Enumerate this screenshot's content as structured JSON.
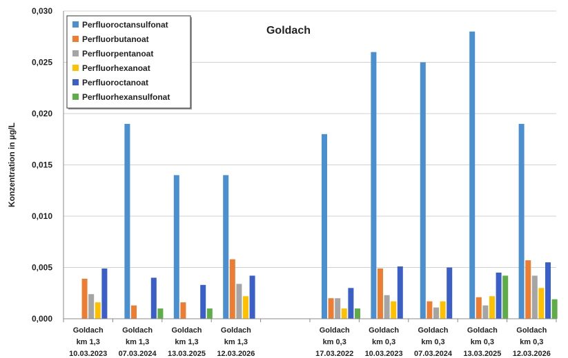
{
  "chart_data": {
    "type": "bar",
    "title": "Goldach",
    "ylabel": "Konzentration in µg/L",
    "xlabel": "",
    "ylim": [
      0,
      0.03
    ],
    "yticks": [
      "0,000",
      "0,005",
      "0,010",
      "0,015",
      "0,020",
      "0,025",
      "0,030"
    ],
    "grid": true,
    "legend_position": "top-left",
    "categories": [
      [
        "Goldach",
        "km 1,3",
        "10.03.2023"
      ],
      [
        "Goldach",
        "km 1,3",
        "07.03.2024"
      ],
      [
        "Goldach",
        "km 1,3",
        "13.03.2025"
      ],
      [
        "Goldach",
        "km 1,3",
        "12.03.2026"
      ],
      [
        "",
        "",
        ""
      ],
      [
        "Goldach",
        "km 0,3",
        "17.03.2022"
      ],
      [
        "Goldach",
        "km 0,3",
        "10.03.2023"
      ],
      [
        "Goldach",
        "km 0,3",
        "07.03.2024"
      ],
      [
        "Goldach",
        "km 0,3",
        "13.03.2025"
      ],
      [
        "Goldach",
        "km 0,3",
        "12.03.2026"
      ]
    ],
    "series": [
      {
        "name": "Perfluoroctansulfonat",
        "color": "#4a90d0",
        "values": [
          null,
          0.019,
          0.014,
          0.014,
          null,
          0.018,
          0.026,
          0.025,
          0.028,
          0.019
        ]
      },
      {
        "name": "Perfluorbutanoat",
        "color": "#ed7d31",
        "values": [
          0.0039,
          0.0013,
          0.0016,
          0.0058,
          null,
          0.002,
          0.0049,
          0.0017,
          0.0021,
          0.0057
        ]
      },
      {
        "name": "Perfluorpentanoat",
        "color": "#a5a5a5",
        "values": [
          0.0024,
          null,
          null,
          0.0034,
          null,
          0.002,
          0.0023,
          0.0011,
          0.0013,
          0.0042
        ]
      },
      {
        "name": "Perfluorhexanoat",
        "color": "#ffc000",
        "values": [
          0.0016,
          null,
          null,
          0.0022,
          null,
          0.001,
          0.0017,
          0.0017,
          0.0022,
          0.003
        ]
      },
      {
        "name": "Perfluoroctanoat",
        "color": "#3a5fc8",
        "values": [
          0.0049,
          0.004,
          0.0033,
          0.0042,
          null,
          0.003,
          0.0051,
          0.005,
          0.0045,
          0.0055
        ]
      },
      {
        "name": "Perfluorhexansulfonat",
        "color": "#5fad47",
        "values": [
          null,
          0.001,
          0.001,
          null,
          null,
          0.001,
          null,
          null,
          0.0042,
          0.0019
        ]
      }
    ]
  }
}
